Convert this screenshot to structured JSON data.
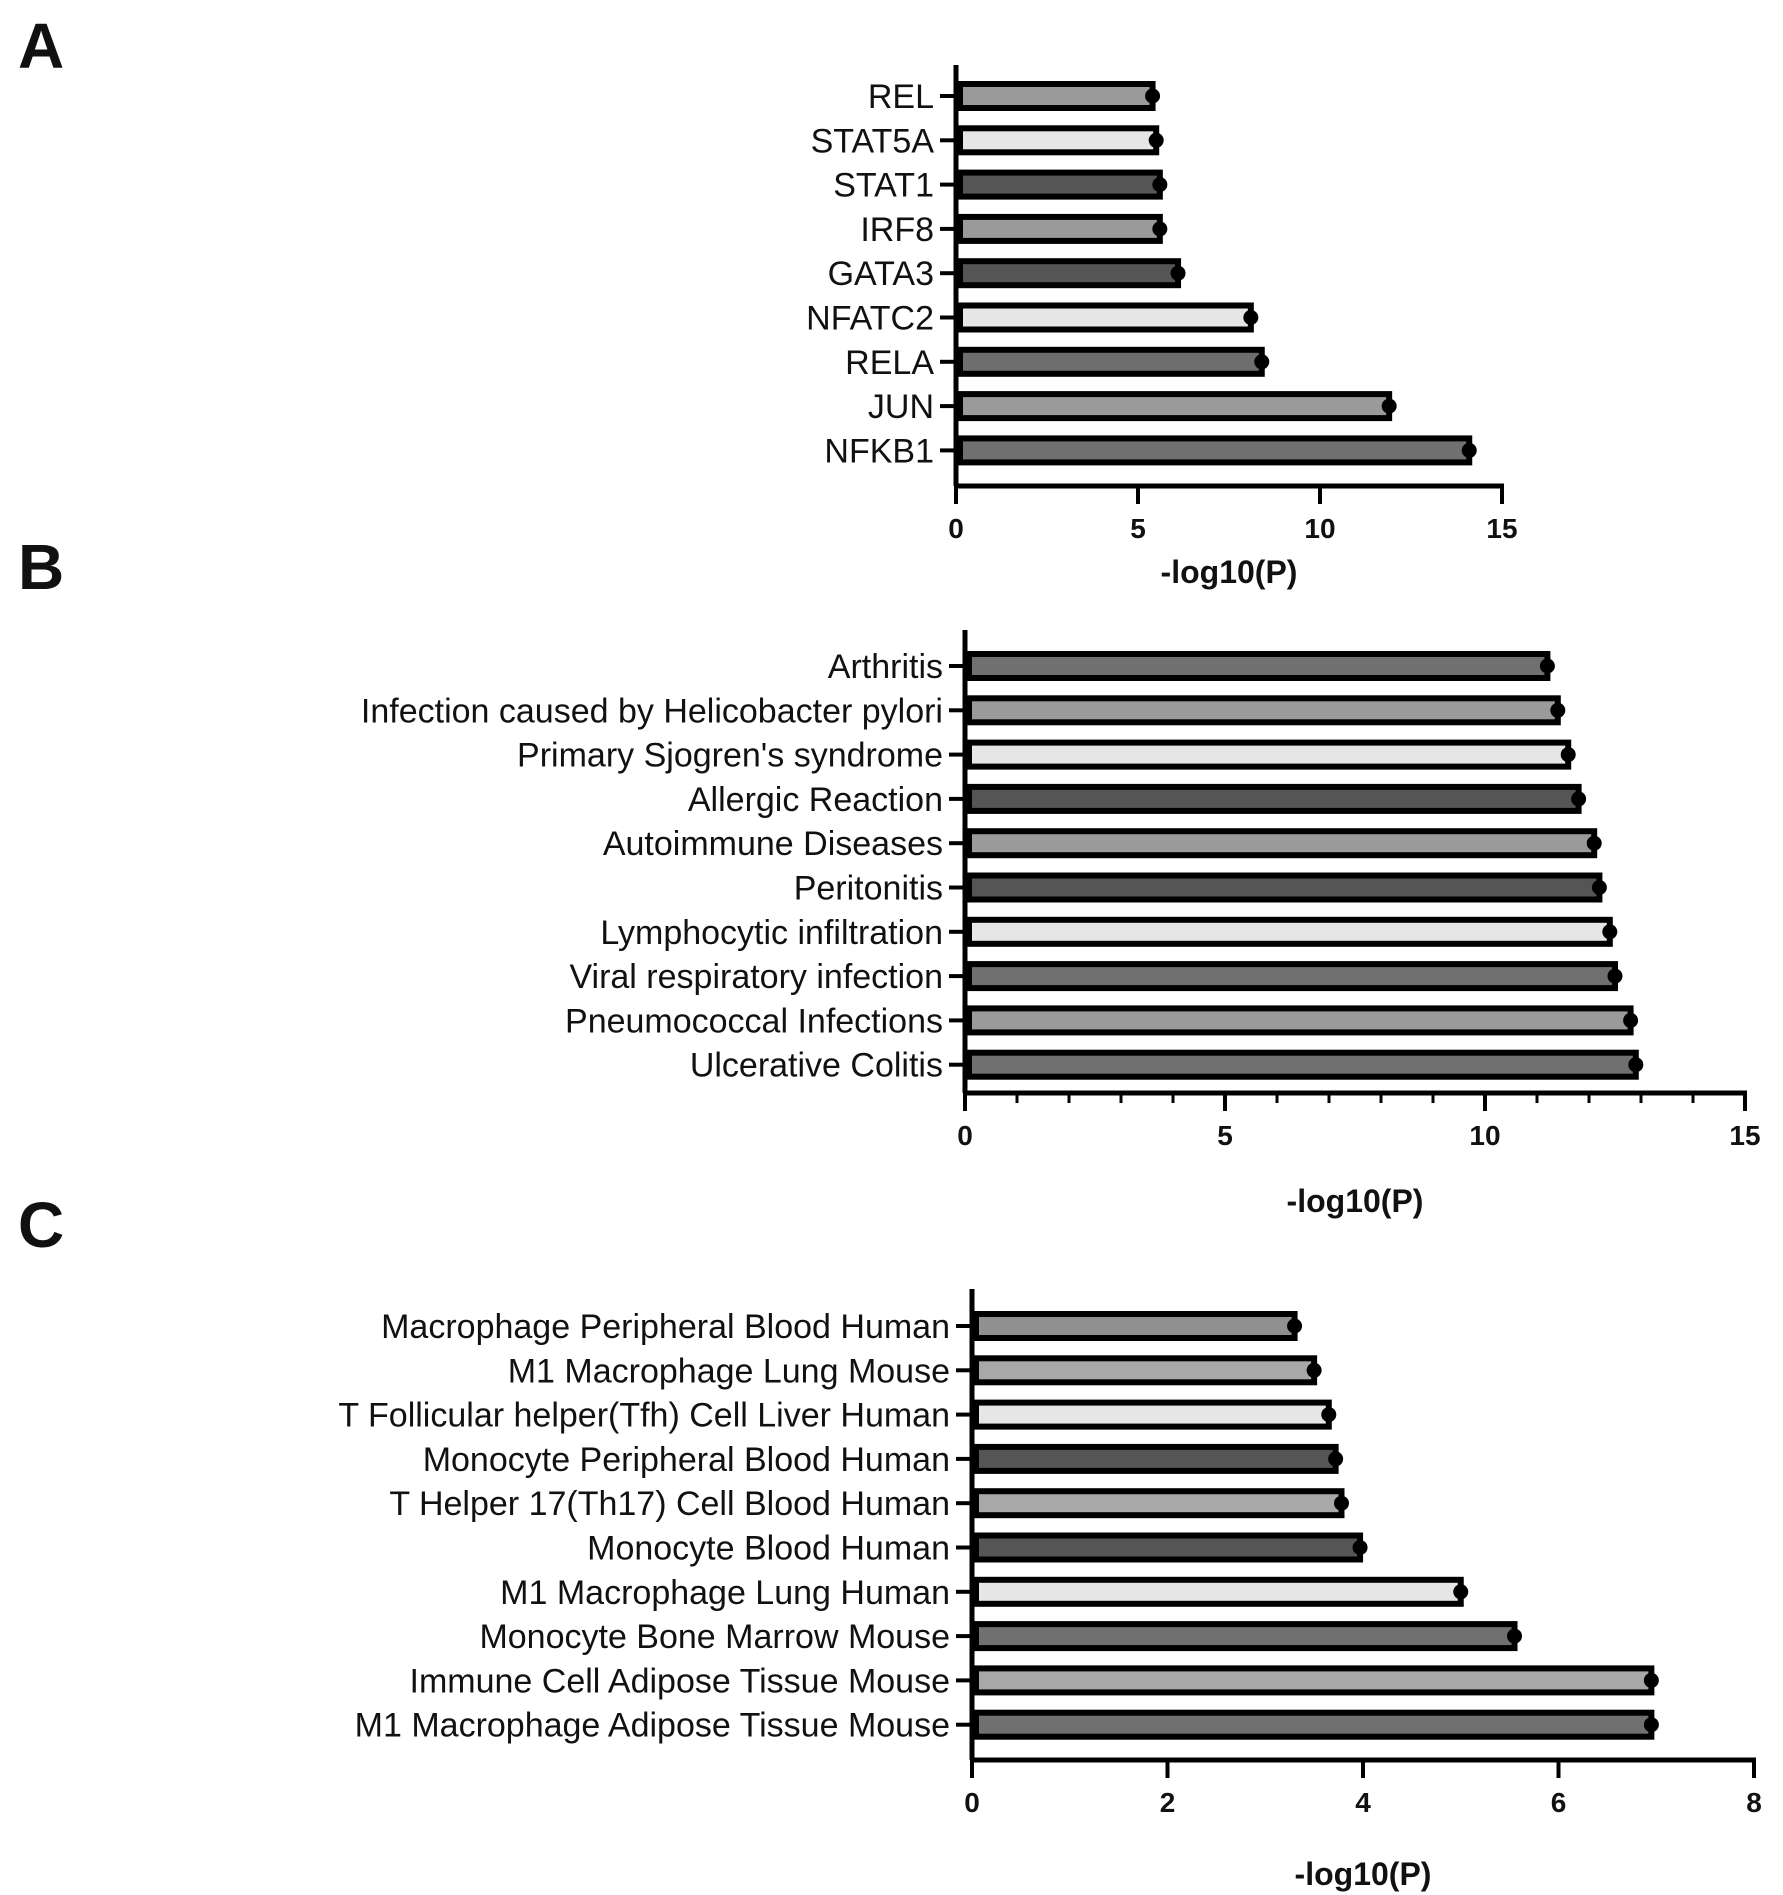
{
  "figure": {
    "panels": [
      "A",
      "B",
      "C"
    ]
  },
  "chart_data": [
    {
      "type": "bar",
      "orientation": "horizontal",
      "panel": "A",
      "categories": [
        "REL",
        "STAT5A",
        "STAT1",
        "IRF8",
        "GATA3",
        "NFATC2",
        "RELA",
        "JUN",
        "NFKB1"
      ],
      "values": [
        5.4,
        5.5,
        5.6,
        5.6,
        6.1,
        8.1,
        8.4,
        11.9,
        14.1
      ],
      "fills": [
        "#9a9a9a",
        "#e6e6e6",
        "#555555",
        "#9a9a9a",
        "#555555",
        "#e6e6e6",
        "#6e6e6e",
        "#9a9a9a",
        "#707070"
      ],
      "xlabel": "-log10(P)",
      "xlim": [
        0,
        15
      ],
      "xticks": [
        0,
        5,
        10,
        15
      ],
      "tick_labels": [
        "0",
        "5",
        "10",
        "15"
      ],
      "minor_ticks": false
    },
    {
      "type": "bar",
      "orientation": "horizontal",
      "panel": "B",
      "categories": [
        "Arthritis",
        "Infection caused by Helicobacter pylori",
        "Primary Sjogren's syndrome",
        "Allergic Reaction",
        "Autoimmune Diseases",
        "Peritonitis",
        "Lymphocytic infiltration",
        "Viral respiratory infection",
        "Pneumococcal Infections",
        "Ulcerative Colitis"
      ],
      "values": [
        11.2,
        11.4,
        11.6,
        11.8,
        12.1,
        12.2,
        12.4,
        12.5,
        12.8,
        12.9
      ],
      "fills": [
        "#707070",
        "#9a9a9a",
        "#e6e6e6",
        "#555555",
        "#9a9a9a",
        "#555555",
        "#e6e6e6",
        "#707070",
        "#9a9a9a",
        "#707070"
      ],
      "xlabel": "-log10(P)",
      "xlim": [
        0,
        15
      ],
      "xticks": [
        0,
        5,
        10,
        15
      ],
      "tick_labels": [
        "0",
        "5",
        "10",
        "15"
      ],
      "minor_ticks": true
    },
    {
      "type": "bar",
      "orientation": "horizontal",
      "panel": "C",
      "categories": [
        "Macrophage Peripheral Blood Human",
        "M1 Macrophage Lung Mouse",
        "T Follicular helper(Tfh) Cell Liver Human",
        "Monocyte Peripheral Blood Human",
        "T Helper 17(Th17) Cell Blood Human",
        "Monocyte Blood Human",
        "M1 Macrophage Lung Human",
        "Monocyte Bone Marrow Mouse",
        "Immune Cell Adipose Tissue Mouse",
        "M1 Macrophage Adipose Tissue Mouse"
      ],
      "values": [
        3.3,
        3.5,
        3.65,
        3.72,
        3.78,
        3.97,
        5.0,
        5.55,
        6.95,
        6.95
      ],
      "fills": [
        "#909090",
        "#a8a8a8",
        "#e6e6e6",
        "#555555",
        "#a8a8a8",
        "#555555",
        "#e6e6e6",
        "#707070",
        "#a8a8a8",
        "#707070"
      ],
      "xlabel": "-log10(P)",
      "xlim": [
        0,
        8
      ],
      "xticks": [
        0,
        2,
        4,
        6,
        8
      ],
      "tick_labels": [
        "0",
        "2",
        "4",
        "6",
        "8"
      ],
      "minor_ticks": false
    }
  ]
}
